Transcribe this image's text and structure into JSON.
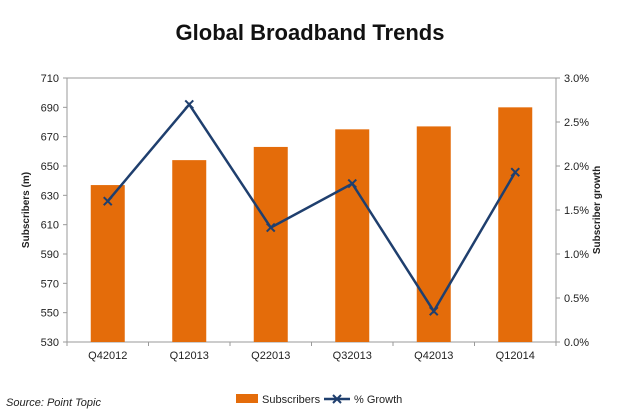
{
  "chart_data": {
    "type": "bar",
    "title": "Global Broadband Trends",
    "categories": [
      "Q42012",
      "Q12013",
      "Q22013",
      "Q32013",
      "Q42013",
      "Q12014"
    ],
    "series": [
      {
        "name": "Subscribers",
        "type": "bar",
        "axis": "left",
        "color": "#E46C0A",
        "values": [
          637,
          654,
          663,
          675,
          677,
          690
        ]
      },
      {
        "name": "% Growth",
        "type": "line",
        "axis": "right",
        "color": "#1F3F6E",
        "marker": "x",
        "values": [
          1.6,
          2.7,
          1.3,
          1.8,
          0.35,
          1.93
        ]
      }
    ],
    "ylabel": "Subscribers (m)",
    "ylim": [
      530,
      710
    ],
    "yticks": [
      "530",
      "550",
      "570",
      "590",
      "610",
      "630",
      "650",
      "670",
      "690",
      "710"
    ],
    "y2label": "Subscriber growth",
    "y2lim": [
      0,
      3.0
    ],
    "y2ticks": [
      "0.0%",
      "0.5%",
      "1.0%",
      "1.5%",
      "2.0%",
      "2.5%",
      "3.0%"
    ],
    "grid": false,
    "legend": "bottom"
  },
  "source": "Source: Point Topic"
}
